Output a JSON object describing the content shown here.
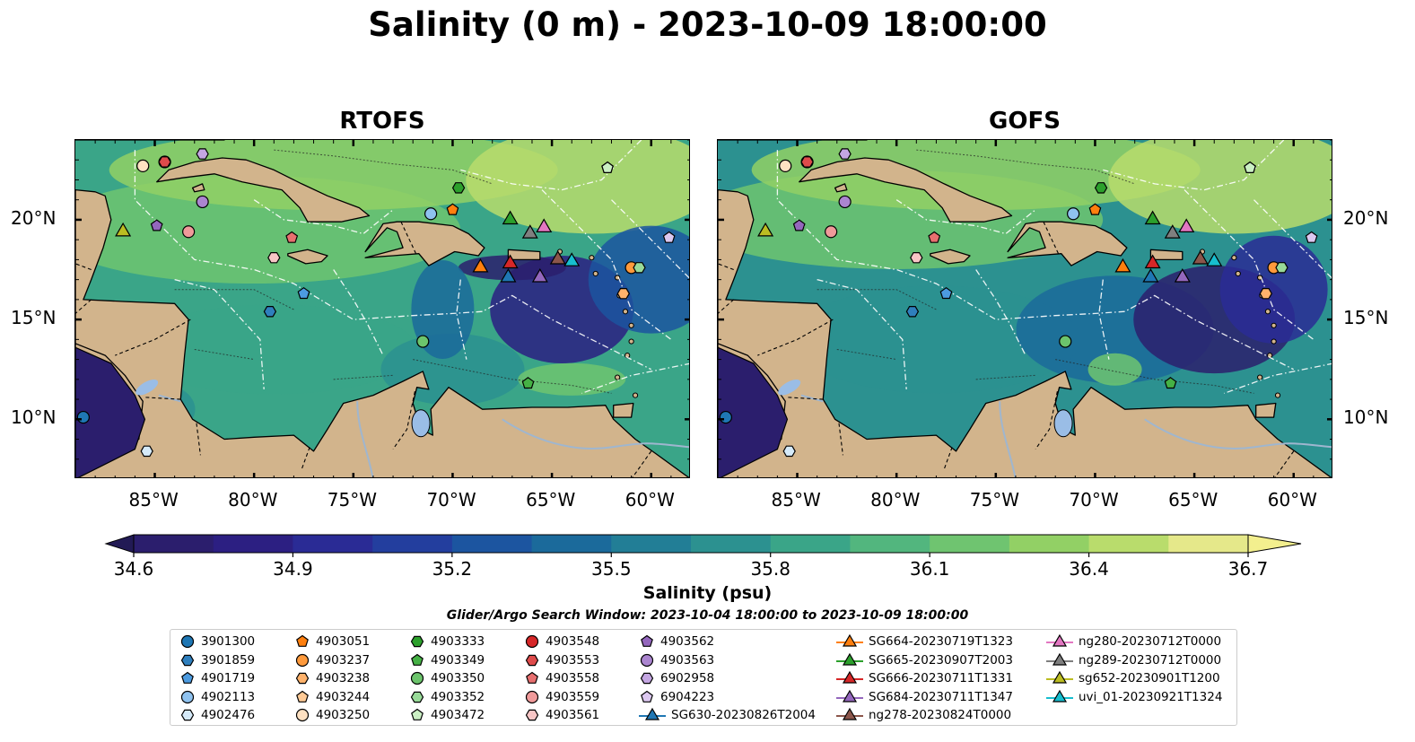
{
  "title": "Salinity (0 m) - 2023-10-09 18:00:00",
  "panels": [
    {
      "title": "RTOFS"
    },
    {
      "title": "GOFS"
    }
  ],
  "axes": {
    "x_ticks": [
      "85°W",
      "80°W",
      "75°W",
      "70°W",
      "65°W",
      "60°W"
    ],
    "y_ticks": [
      "20°N",
      "15°N",
      "10°N"
    ],
    "lon_range": [
      -89,
      -58
    ],
    "lat_range": [
      7,
      24
    ]
  },
  "colorbar": {
    "label": "Salinity (psu)",
    "ticks": [
      "34.6",
      "34.9",
      "35.2",
      "35.5",
      "35.8",
      "36.1",
      "36.4",
      "36.7"
    ],
    "range": [
      34.6,
      36.7
    ],
    "extend": "both",
    "colors": [
      "#2b1e6d",
      "#2c1f82",
      "#2a2b95",
      "#233e9e",
      "#1c55a0",
      "#1b6a9b",
      "#227e96",
      "#2c9190",
      "#3aa588",
      "#52b67e",
      "#6fc470",
      "#92d065",
      "#b9dc6c",
      "#e5e88a"
    ]
  },
  "search_window": "Glider/Argo Search Window: 2023-10-04 18:00:00 to 2023-10-09 18:00:00",
  "colors": {
    "land": "#d2b48c",
    "lakes": "#9abde6",
    "rivers": "#9fb6cf"
  },
  "legend": {
    "items": [
      {
        "label": "3901300",
        "marker": "circle",
        "color": "#1f77b4"
      },
      {
        "label": "3901859",
        "marker": "hexagon",
        "color": "#2f7fbd"
      },
      {
        "label": "4901719",
        "marker": "pentagon",
        "color": "#4c9be0"
      },
      {
        "label": "4902113",
        "marker": "circle",
        "color": "#8fc2ef"
      },
      {
        "label": "4902476",
        "marker": "hexagon",
        "color": "#d5eaf9"
      },
      {
        "label": "4903051",
        "marker": "pentagon",
        "color": "#ff7f0e"
      },
      {
        "label": "4903237",
        "marker": "circle",
        "color": "#ff9a3c"
      },
      {
        "label": "4903238",
        "marker": "hexagon",
        "color": "#ffb26b"
      },
      {
        "label": "4903244",
        "marker": "pentagon",
        "color": "#ffca96"
      },
      {
        "label": "4903250",
        "marker": "circle",
        "color": "#ffe1c2"
      },
      {
        "label": "4903333",
        "marker": "hexagon",
        "color": "#2ca02c"
      },
      {
        "label": "4903349",
        "marker": "pentagon",
        "color": "#45b145"
      },
      {
        "label": "4903350",
        "marker": "circle",
        "color": "#6cc46c"
      },
      {
        "label": "4903352",
        "marker": "hexagon",
        "color": "#98da98"
      },
      {
        "label": "4903472",
        "marker": "pentagon",
        "color": "#cbf0c4"
      },
      {
        "label": "4903548",
        "marker": "circle",
        "color": "#d62728"
      },
      {
        "label": "4903553",
        "marker": "hexagon",
        "color": "#de4b4b"
      },
      {
        "label": "4903558",
        "marker": "pentagon",
        "color": "#e76f6f"
      },
      {
        "label": "4903559",
        "marker": "circle",
        "color": "#f09a9a"
      },
      {
        "label": "4903561",
        "marker": "hexagon",
        "color": "#f8c6c6"
      },
      {
        "label": "4903562",
        "marker": "pentagon",
        "color": "#9467bd"
      },
      {
        "label": "4903563",
        "marker": "circle",
        "color": "#ab85d0"
      },
      {
        "label": "6902958",
        "marker": "hexagon",
        "color": "#c4a6e2"
      },
      {
        "label": "6904223",
        "marker": "pentagon",
        "color": "#dcc8f0"
      },
      {
        "label": "SG630-20230826T2004",
        "marker": "triangle-line",
        "color": "#1f77b4"
      },
      {
        "label": "SG664-20230719T1323",
        "marker": "triangle-line",
        "color": "#ff7f0e"
      },
      {
        "label": "SG665-20230907T2003",
        "marker": "triangle-line",
        "color": "#2ca02c"
      },
      {
        "label": "SG666-20230711T1331",
        "marker": "triangle-line",
        "color": "#d62728"
      },
      {
        "label": "SG684-20230711T1347",
        "marker": "triangle-line",
        "color": "#9467bd"
      },
      {
        "label": "ng278-20230824T0000",
        "marker": "triangle-line",
        "color": "#8c564b"
      },
      {
        "label": "ng280-20230712T0000",
        "marker": "triangle-line",
        "color": "#e377c2"
      },
      {
        "label": "ng289-20230712T0000",
        "marker": "triangle-line",
        "color": "#7f7f7f"
      },
      {
        "label": "sg652-20230901T1200",
        "marker": "triangle-line",
        "color": "#bcbd22"
      },
      {
        "label": "uvi_01-20230921T1324",
        "marker": "triangle-line",
        "color": "#17becf"
      }
    ]
  },
  "observations": [
    {
      "id": "3901300",
      "lon": -88.6,
      "lat": 10.1
    },
    {
      "id": "3901859",
      "lon": -79.2,
      "lat": 15.4
    },
    {
      "id": "4901719",
      "lon": -77.5,
      "lat": 16.3
    },
    {
      "id": "4902113",
      "lon": -71.1,
      "lat": 20.3
    },
    {
      "id": "4902476",
      "lon": -85.4,
      "lat": 8.4
    },
    {
      "id": "4903051",
      "lon": -70.0,
      "lat": 20.5
    },
    {
      "id": "4903237",
      "lon": -61.0,
      "lat": 17.6
    },
    {
      "id": "4903238",
      "lon": -61.4,
      "lat": 16.3
    },
    {
      "id": "4903244",
      "lon": -62.2,
      "lat": 22.6
    },
    {
      "id": "4903250",
      "lon": -85.6,
      "lat": 22.7
    },
    {
      "id": "4903333",
      "lon": -69.7,
      "lat": 21.6
    },
    {
      "id": "4903349",
      "lon": -66.2,
      "lat": 11.8
    },
    {
      "id": "4903350",
      "lon": -71.5,
      "lat": 13.9
    },
    {
      "id": "4903352",
      "lon": -60.6,
      "lat": 17.6
    },
    {
      "id": "4903472",
      "lon": -62.2,
      "lat": 22.6
    },
    {
      "id": "4903548",
      "lon": -84.5,
      "lat": 22.9
    },
    {
      "id": "4903553",
      "lon": -84.5,
      "lat": 22.9
    },
    {
      "id": "4903558",
      "lon": -78.1,
      "lat": 19.1
    },
    {
      "id": "4903559",
      "lon": -83.3,
      "lat": 19.4
    },
    {
      "id": "4903561",
      "lon": -79.0,
      "lat": 18.1
    },
    {
      "id": "4903562",
      "lon": -84.9,
      "lat": 19.7
    },
    {
      "id": "4903563",
      "lon": -82.6,
      "lat": 20.9
    },
    {
      "id": "6902958",
      "lon": -82.6,
      "lat": 23.3
    },
    {
      "id": "6904223",
      "lon": -59.1,
      "lat": 19.1
    },
    {
      "id": "SG630-20230826T2004",
      "lon": -67.2,
      "lat": 17.1
    },
    {
      "id": "SG664-20230719T1323",
      "lon": -68.6,
      "lat": 17.6
    },
    {
      "id": "SG665-20230907T2003",
      "lon": -67.1,
      "lat": 20.0
    },
    {
      "id": "SG666-20230711T1331",
      "lon": -67.1,
      "lat": 17.8
    },
    {
      "id": "SG684-20230711T1347",
      "lon": -65.6,
      "lat": 17.1
    },
    {
      "id": "ng278-20230824T0000",
      "lon": -64.7,
      "lat": 18.0
    },
    {
      "id": "ng280-20230712T0000",
      "lon": -65.4,
      "lat": 19.6
    },
    {
      "id": "ng289-20230712T0000",
      "lon": -66.1,
      "lat": 19.3
    },
    {
      "id": "sg652-20230901T1200",
      "lon": -86.6,
      "lat": 19.4
    },
    {
      "id": "uvi_01-20230921T1324",
      "lon": -64.0,
      "lat": 17.9
    }
  ]
}
